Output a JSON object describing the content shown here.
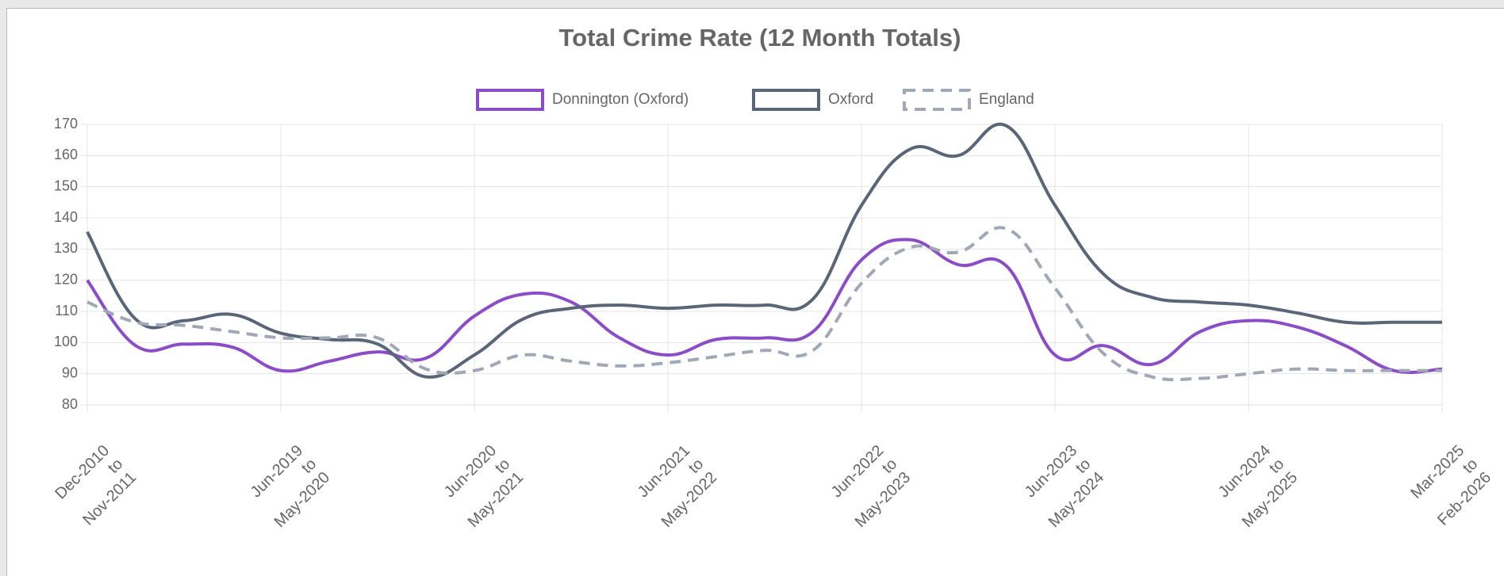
{
  "chart_data": {
    "type": "line",
    "title": "Total Crime Rate (12 Month Totals)",
    "categories": [
      [
        "Dec-2010",
        "to",
        "Nov-2011"
      ],
      null,
      null,
      null,
      [
        "Jun-2019",
        "to",
        "May-2020"
      ],
      null,
      null,
      null,
      [
        "Jun-2020",
        "to",
        "May-2021"
      ],
      null,
      null,
      null,
      [
        "Jun-2021",
        "to",
        "May-2022"
      ],
      null,
      null,
      null,
      [
        "Jun-2022",
        "to",
        "May-2023"
      ],
      null,
      null,
      null,
      [
        "Jun-2023",
        "to",
        "May-2024"
      ],
      null,
      null,
      null,
      [
        "Jun-2024",
        "to",
        "May-2025"
      ],
      null,
      null,
      null,
      [
        "Mar-2025",
        "to",
        "Feb-2026"
      ]
    ],
    "series": [
      {
        "name": "Donnington (Oxford)",
        "color": "#8b4cc8",
        "dashed": false,
        "values": [
          120,
          99,
          99.5,
          98.5,
          91,
          94,
          97,
          95,
          108.5,
          115.5,
          113,
          101.5,
          96,
          101,
          101.5,
          103.5,
          126.5,
          133,
          125,
          124.5,
          96,
          99,
          93,
          103.5,
          107,
          105,
          99,
          91,
          91.5
        ]
      },
      {
        "name": "Oxford",
        "color": "#5a6578",
        "dashed": false,
        "values": [
          135.5,
          107.5,
          107,
          109,
          103,
          101,
          99.5,
          89,
          96,
          107.5,
          111,
          112,
          111,
          112,
          112,
          114,
          144,
          162,
          160,
          169.5,
          144,
          122,
          114.5,
          113,
          112,
          109.5,
          106.5,
          106.5,
          106.5
        ]
      },
      {
        "name": "England",
        "color": "#a0a7b5",
        "dashed": true,
        "values": [
          113,
          106.5,
          105.5,
          103.5,
          101.5,
          101.5,
          101.5,
          91.5,
          91,
          96,
          94,
          92.5,
          93.5,
          95.5,
          97.5,
          97.5,
          119,
          130.5,
          129,
          136.5,
          117.5,
          96.5,
          89,
          88.5,
          90,
          91.5,
          91,
          91,
          91
        ]
      }
    ],
    "ylim": [
      80,
      170
    ],
    "yticks": [
      80,
      90,
      100,
      110,
      120,
      130,
      140,
      150,
      160,
      170
    ],
    "grid": true
  }
}
